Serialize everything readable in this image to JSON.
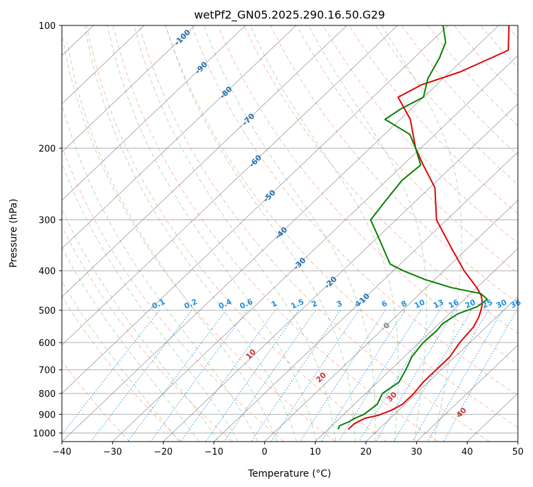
{
  "chart_data": {
    "type": "line",
    "subtype": "skew-t log-p diagram",
    "title": "wetPf2_GN05.2025.290.16.50.G29",
    "xlabel": "Temperature (°C)",
    "ylabel": "Pressure (hPa)",
    "xlim": [
      -40,
      50
    ],
    "ylim": [
      1050,
      100
    ],
    "x_ticks": [
      -40,
      -30,
      -20,
      -10,
      0,
      10,
      20,
      30,
      40,
      50
    ],
    "y_ticks": [
      100,
      200,
      300,
      400,
      500,
      600,
      700,
      800,
      900,
      1000
    ],
    "grid": true,
    "colors": {
      "temperature": "#e00000",
      "dewpoint": "#008000",
      "isotherm": "#7a7a7a",
      "dry_adiabat": "#f08060",
      "moist_adiabat": "#60b060",
      "mixing_ratio": "#2090e0",
      "isotherm_label": "#1f6fb0",
      "dry_adiabat_label": "#d03030",
      "freezing_label": "#808080"
    },
    "series": [
      {
        "name": "Temperature",
        "color": "#e00000",
        "pressure": [
          980,
          950,
          920,
          905,
          880,
          850,
          800,
          750,
          700,
          650,
          600,
          550,
          520,
          500,
          480,
          460,
          440,
          400,
          350,
          300,
          250,
          220,
          200,
          170,
          150,
          140,
          130,
          115,
          100
        ],
        "temperature": [
          14,
          14,
          15,
          17,
          18.5,
          19.5,
          19.5,
          19,
          19,
          19,
          18,
          17.5,
          16.5,
          15.5,
          14.3,
          12.5,
          10,
          4,
          -3.5,
          -12,
          -19,
          -26,
          -31,
          -38,
          -45,
          -43,
          -38,
          -33,
          -38
        ]
      },
      {
        "name": "Dewpoint",
        "color": "#008000",
        "pressure": [
          980,
          960,
          940,
          920,
          900,
          850,
          800,
          750,
          700,
          650,
          600,
          560,
          540,
          510,
          490,
          470,
          455,
          440,
          420,
          400,
          385,
          360,
          330,
          300,
          270,
          240,
          220,
          200,
          185,
          170,
          160,
          150,
          135,
          120,
          110,
          100
        ],
        "temperature": [
          12,
          11.5,
          12.5,
          13,
          14,
          14.5,
          13.3,
          14.2,
          13,
          11.5,
          10.8,
          11,
          10.7,
          11.7,
          14,
          14.5,
          12,
          5,
          -2,
          -8,
          -12,
          -15.5,
          -20,
          -25,
          -26,
          -27,
          -26.5,
          -31,
          -35,
          -43,
          -42,
          -40,
          -43,
          -45,
          -47,
          -51
        ]
      }
    ],
    "isotherm_labels": [
      "-100",
      "-90",
      "-80",
      "-70",
      "-60",
      "-50",
      "-40",
      "-30",
      "-20",
      "-10"
    ],
    "mixing_ratio_labels": [
      "0.1",
      "0.2",
      "0.4",
      "0.6",
      "1",
      "1.5",
      "2",
      "3",
      "4",
      "6",
      "8",
      "10",
      "13",
      "16",
      "20",
      "25",
      "30",
      "36"
    ],
    "dry_adiabat_labels": [
      "10",
      "20",
      "30",
      "40"
    ],
    "freezing_label": "0"
  }
}
